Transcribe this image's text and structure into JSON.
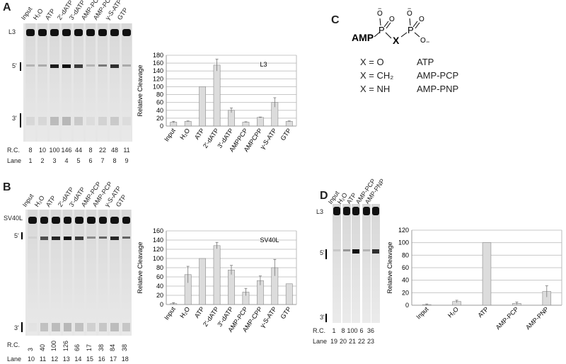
{
  "panels": {
    "A": {
      "letter": "A",
      "gel_label_top": "L3",
      "mark_5": "5'",
      "mark_3": "3'",
      "lane_headers": [
        "Input",
        "H₂O",
        "ATP",
        "2'-dATP",
        "3'-dATP",
        "AMP-PCP",
        "AMP-PCP",
        "γ-S-ATP",
        "GTP"
      ],
      "rc_label": "R.C.",
      "rc_values": [
        "8",
        "10",
        "100",
        "146",
        "44",
        "8",
        "22",
        "48",
        "11"
      ],
      "lane_label": "Lane",
      "lane_numbers": [
        "1",
        "2",
        "3",
        "4",
        "5",
        "6",
        "7",
        "8",
        "9"
      ]
    },
    "B": {
      "letter": "B",
      "gel_label_top": "SV40L",
      "mark_5": "5'",
      "mark_3": "3'",
      "lane_headers": [
        "Input",
        "H₂O",
        "ATP",
        "2'-dATP",
        "3'-dATP",
        "AMP-PCP",
        "AMP-PCP",
        "γ-S-ATP",
        "GTP"
      ],
      "rc_label": "R.C.",
      "rc_values": [
        "3",
        "40",
        "100",
        "126",
        "66",
        "17",
        "38",
        "84",
        "38"
      ],
      "lane_label": "Lane",
      "lane_numbers": [
        "10",
        "11",
        "12",
        "13",
        "14",
        "15",
        "16",
        "17",
        "18"
      ]
    },
    "C": {
      "letter": "C",
      "structure": {
        "amp": "AMP",
        "p1": "P",
        "p2": "P",
        "x": "X",
        "o": "O",
        "minus": "−"
      },
      "rows": [
        {
          "x_eq": "X = O",
          "name": "ATP"
        },
        {
          "x_eq": "X = CH₂",
          "name": "AMP-PCP"
        },
        {
          "x_eq": "X = NH",
          "name": "AMP-PNP"
        }
      ]
    },
    "D": {
      "letter": "D",
      "gel_label_top": "L3",
      "mark_5": "5'",
      "mark_3": "3'",
      "lane_headers": [
        "Input",
        "H₂O",
        "ATP",
        "AMP-PCP",
        "AMP-PNP"
      ],
      "rc_label": "R.C.",
      "rc_values": [
        "1",
        "8",
        "100",
        "6",
        "36"
      ],
      "lane_label": "Lane",
      "lane_numbers": [
        "19",
        "20",
        "21",
        "22",
        "23"
      ]
    }
  },
  "colors": {
    "bar_fill": "#dcdcdc",
    "bar_stroke": "#8a8a8a",
    "grid": "#c8c8c8",
    "gel_bg": "#e6e6e6",
    "band": "#111111"
  },
  "chart_data": [
    {
      "type": "bar",
      "panel": "A",
      "title": "L3",
      "ylabel": "Relative Cleavage",
      "xlabel": "",
      "categories": [
        "Input",
        "H₂O",
        "ATP",
        "2'-dATP",
        "3'-dATP",
        "AMPPCP",
        "AMPCPP",
        "γ-S-ATP",
        "GTP"
      ],
      "values": [
        10,
        12,
        100,
        155,
        40,
        10,
        22,
        60,
        12
      ],
      "errors": [
        2,
        1,
        0,
        15,
        6,
        1,
        1,
        12,
        1
      ],
      "ylim": [
        0,
        180
      ],
      "yticks": [
        "0",
        "20",
        "40",
        "60",
        "80",
        "100",
        "120",
        "140",
        "160",
        "180"
      ],
      "grid": true
    },
    {
      "type": "bar",
      "panel": "B",
      "title": "SV40L",
      "ylabel": "Relative Cleavage",
      "xlabel": "",
      "categories": [
        "Input",
        "H₂O",
        "ATP",
        "2'-dATP",
        "3'-dATP",
        "AMP-PCP",
        "AMP-CPP",
        "γ-S-ATP",
        "GTP"
      ],
      "values": [
        2,
        65,
        100,
        128,
        75,
        27,
        52,
        80,
        45
      ],
      "errors": [
        2,
        18,
        0,
        7,
        10,
        8,
        10,
        18,
        0
      ],
      "ylim": [
        0,
        160
      ],
      "yticks": [
        "0",
        "20",
        "40",
        "60",
        "80",
        "100",
        "120",
        "140",
        "160"
      ],
      "grid": true
    },
    {
      "type": "bar",
      "panel": "D",
      "title": "",
      "ylabel": "Relative Cleavage",
      "xlabel": "",
      "categories": [
        "Input",
        "H₂O",
        "ATP",
        "AMP-PCP",
        "AMP-PNP"
      ],
      "values": [
        1,
        6,
        100,
        3,
        22
      ],
      "errors": [
        1,
        2,
        0,
        2,
        9
      ],
      "ylim": [
        0,
        120
      ],
      "yticks": [
        "0",
        "20",
        "40",
        "60",
        "80",
        "100",
        "120"
      ],
      "grid": true
    }
  ]
}
